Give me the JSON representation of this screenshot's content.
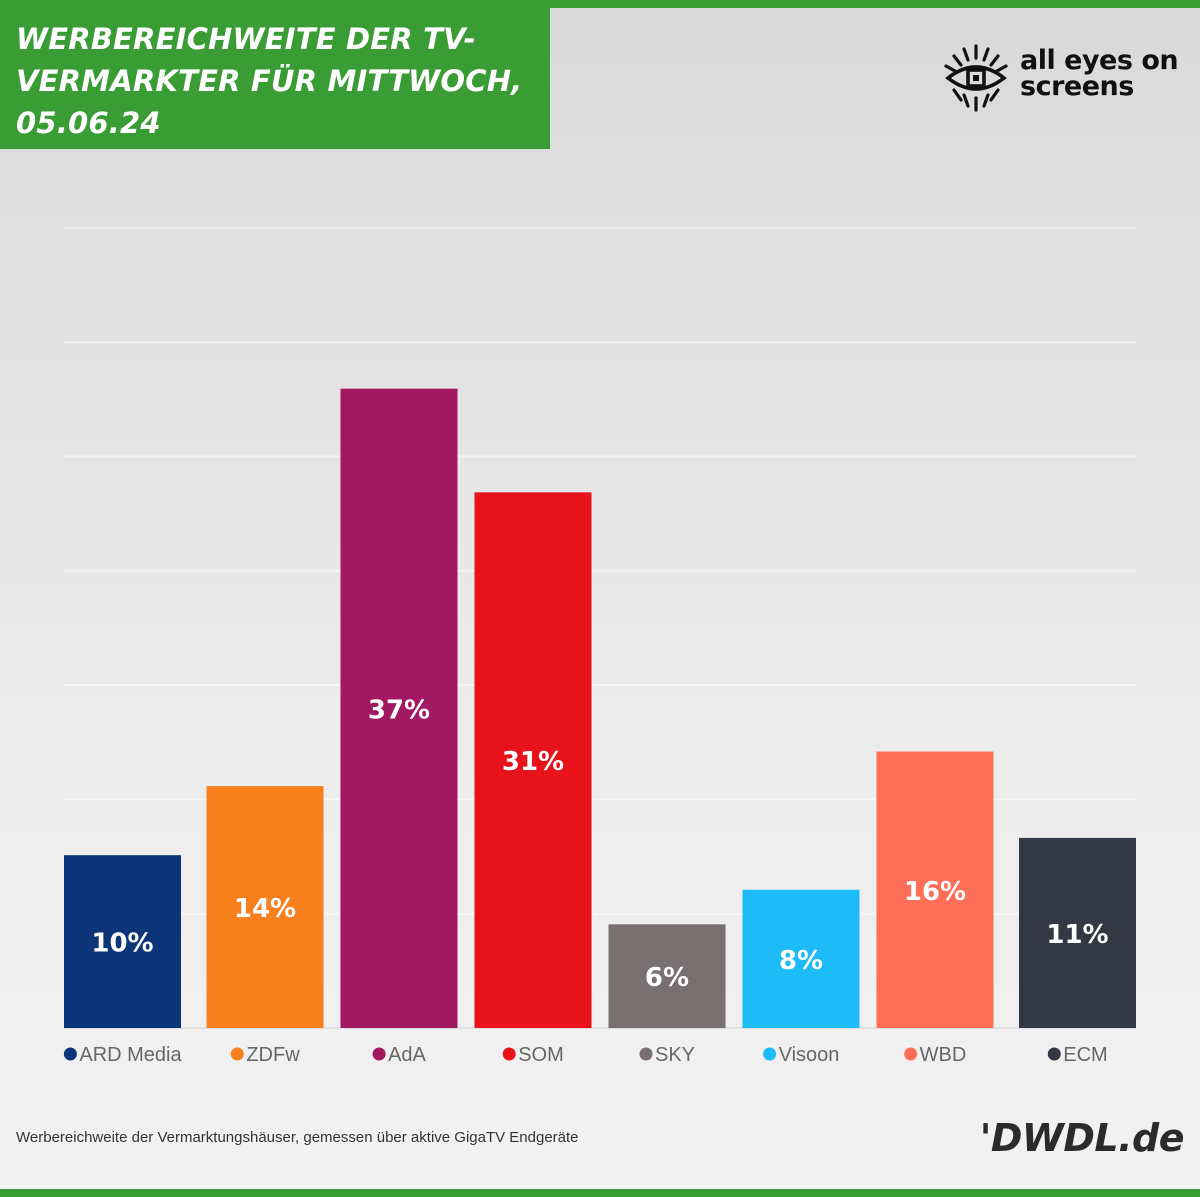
{
  "header": {
    "title": "WERBEREICHWEITE DER TV-VERMARKTER FÜR MITTWOCH, 05.06.24",
    "title_lines": [
      "WERBEREICHWEITE DER TV-",
      "VERMARKTER FÜR MITTWOCH,",
      "05.06.24"
    ]
  },
  "logo": {
    "line1": "all eyes on",
    "line2": "screens",
    "icon": "eye-icon"
  },
  "footer": {
    "note": "Werbereichweite der Vermarktungshäuser, gemessen über aktive GigaTV Endgeräte",
    "brand": "'DWDL.de"
  },
  "colors": {
    "accent": "#3a9c35",
    "grid": "#ffffff",
    "label": "#ffffff"
  },
  "chart_data": {
    "type": "bar",
    "categories": [
      "ARD Media",
      "ZDFw",
      "AdA",
      "SOM",
      "SKY",
      "Visoon",
      "WBD",
      "ECM"
    ],
    "values": [
      10,
      14,
      37,
      31,
      6,
      8,
      16,
      11
    ],
    "value_labels": [
      "10%",
      "14%",
      "37%",
      "31%",
      "6%",
      "8%",
      "16%",
      "11%"
    ],
    "colors": [
      "#0c3478",
      "#f77f1d",
      "#a21862",
      "#e8121b",
      "#787070",
      "#1dbbf7",
      "#ff6f57",
      "#343744"
    ],
    "ylim": [
      0,
      45
    ],
    "grid": true,
    "legend": "bottom"
  }
}
